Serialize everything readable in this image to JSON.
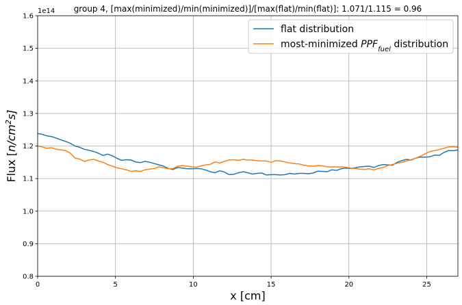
{
  "chart_data": {
    "type": "line",
    "title": "group 4, [max(minimized)/min(minimized)]/[max(flat)/min(flat)]: 1.071/1.115 = 0.96",
    "xlabel": "x [cm]",
    "ylabel_prefix": "Flux [",
    "ylabel_math": "n/cm",
    "ylabel_sup": "2",
    "ylabel_suffix": "s]",
    "y_offset_text": "1e14",
    "xlim": [
      0,
      27
    ],
    "ylim": [
      0.8,
      1.6
    ],
    "xticks": [
      0,
      5,
      10,
      15,
      20,
      25
    ],
    "yticks": [
      0.8,
      0.9,
      1.0,
      1.1,
      1.2,
      1.3,
      1.4,
      1.5,
      1.6
    ],
    "xtick_labels": [
      "0",
      "5",
      "10",
      "15",
      "20",
      "25"
    ],
    "ytick_labels": [
      "0.8",
      "0.9",
      "1.0",
      "1.1",
      "1.2",
      "1.3",
      "1.4",
      "1.5",
      "1.6"
    ],
    "grid": true,
    "legend_position": "top-right",
    "series": [
      {
        "name": "flat distribution",
        "color": "#1f77b4",
        "x": [
          0,
          0.3,
          0.6,
          0.9,
          1.2,
          1.5,
          1.8,
          2.1,
          2.4,
          2.7,
          3.0,
          3.3,
          3.6,
          3.9,
          4.2,
          4.5,
          4.8,
          5.1,
          5.4,
          5.7,
          6.0,
          6.3,
          6.6,
          6.9,
          7.2,
          7.5,
          7.8,
          8.1,
          8.4,
          8.7,
          9.0,
          9.3,
          9.6,
          9.9,
          10.2,
          10.5,
          10.8,
          11.1,
          11.4,
          11.7,
          12.0,
          12.3,
          12.6,
          12.9,
          13.2,
          13.5,
          13.8,
          14.1,
          14.4,
          14.7,
          15.0,
          15.3,
          15.6,
          15.9,
          16.2,
          16.5,
          16.8,
          17.1,
          17.4,
          17.7,
          18.0,
          18.3,
          18.6,
          18.9,
          19.2,
          19.5,
          19.8,
          20.1,
          20.4,
          20.7,
          21.0,
          21.3,
          21.6,
          21.9,
          22.2,
          22.5,
          22.8,
          23.1,
          23.4,
          23.7,
          24.0,
          24.3,
          24.6,
          24.9,
          25.2,
          25.5,
          25.8,
          26.1,
          26.4,
          26.7,
          27.0
        ],
        "values": [
          1.238,
          1.236,
          1.231,
          1.229,
          1.224,
          1.219,
          1.214,
          1.208,
          1.2,
          1.196,
          1.19,
          1.187,
          1.183,
          1.178,
          1.171,
          1.175,
          1.17,
          1.162,
          1.156,
          1.158,
          1.157,
          1.151,
          1.149,
          1.153,
          1.15,
          1.146,
          1.142,
          1.138,
          1.131,
          1.128,
          1.134,
          1.132,
          1.13,
          1.13,
          1.131,
          1.13,
          1.126,
          1.121,
          1.118,
          1.124,
          1.12,
          1.112,
          1.113,
          1.118,
          1.121,
          1.118,
          1.114,
          1.116,
          1.117,
          1.111,
          1.112,
          1.112,
          1.111,
          1.112,
          1.116,
          1.114,
          1.116,
          1.116,
          1.115,
          1.117,
          1.123,
          1.122,
          1.121,
          1.127,
          1.125,
          1.13,
          1.132,
          1.131,
          1.133,
          1.136,
          1.137,
          1.138,
          1.134,
          1.14,
          1.143,
          1.142,
          1.141,
          1.15,
          1.155,
          1.159,
          1.157,
          1.163,
          1.166,
          1.166,
          1.167,
          1.172,
          1.171,
          1.18,
          1.186,
          1.186,
          1.188
        ]
      },
      {
        "name_prefix": "most-minimized ",
        "name_math": "PPF",
        "name_sub": "fuel",
        "name_suffix": " distribution",
        "color": "#ff7f0e",
        "x": [
          0,
          0.3,
          0.6,
          0.9,
          1.2,
          1.5,
          1.8,
          2.1,
          2.4,
          2.7,
          3.0,
          3.3,
          3.6,
          3.9,
          4.2,
          4.5,
          4.8,
          5.1,
          5.4,
          5.7,
          6.0,
          6.3,
          6.6,
          6.9,
          7.2,
          7.5,
          7.8,
          8.1,
          8.4,
          8.7,
          9.0,
          9.3,
          9.6,
          9.9,
          10.2,
          10.5,
          10.8,
          11.1,
          11.4,
          11.7,
          12.0,
          12.3,
          12.6,
          12.9,
          13.2,
          13.5,
          13.8,
          14.1,
          14.4,
          14.7,
          15.0,
          15.3,
          15.6,
          15.9,
          16.2,
          16.5,
          16.8,
          17.1,
          17.4,
          17.7,
          18.0,
          18.3,
          18.6,
          18.9,
          19.2,
          19.5,
          19.8,
          20.1,
          20.4,
          20.7,
          21.0,
          21.3,
          21.6,
          21.9,
          22.2,
          22.5,
          22.8,
          23.1,
          23.4,
          23.7,
          24.0,
          24.3,
          24.6,
          24.9,
          25.2,
          25.5,
          25.8,
          26.1,
          26.4,
          26.7,
          27.0
        ],
        "values": [
          1.2,
          1.197,
          1.193,
          1.195,
          1.19,
          1.188,
          1.186,
          1.178,
          1.163,
          1.16,
          1.153,
          1.157,
          1.159,
          1.154,
          1.15,
          1.143,
          1.138,
          1.133,
          1.13,
          1.127,
          1.122,
          1.124,
          1.122,
          1.127,
          1.129,
          1.131,
          1.136,
          1.133,
          1.13,
          1.131,
          1.138,
          1.14,
          1.138,
          1.136,
          1.135,
          1.139,
          1.142,
          1.144,
          1.151,
          1.148,
          1.153,
          1.157,
          1.158,
          1.156,
          1.159,
          1.157,
          1.157,
          1.155,
          1.154,
          1.154,
          1.15,
          1.155,
          1.154,
          1.151,
          1.148,
          1.146,
          1.145,
          1.141,
          1.139,
          1.138,
          1.14,
          1.139,
          1.136,
          1.136,
          1.136,
          1.136,
          1.135,
          1.132,
          1.131,
          1.129,
          1.128,
          1.13,
          1.127,
          1.131,
          1.134,
          1.14,
          1.143,
          1.147,
          1.15,
          1.154,
          1.158,
          1.163,
          1.169,
          1.176,
          1.183,
          1.186,
          1.189,
          1.193,
          1.197,
          1.198,
          1.196
        ]
      }
    ]
  }
}
